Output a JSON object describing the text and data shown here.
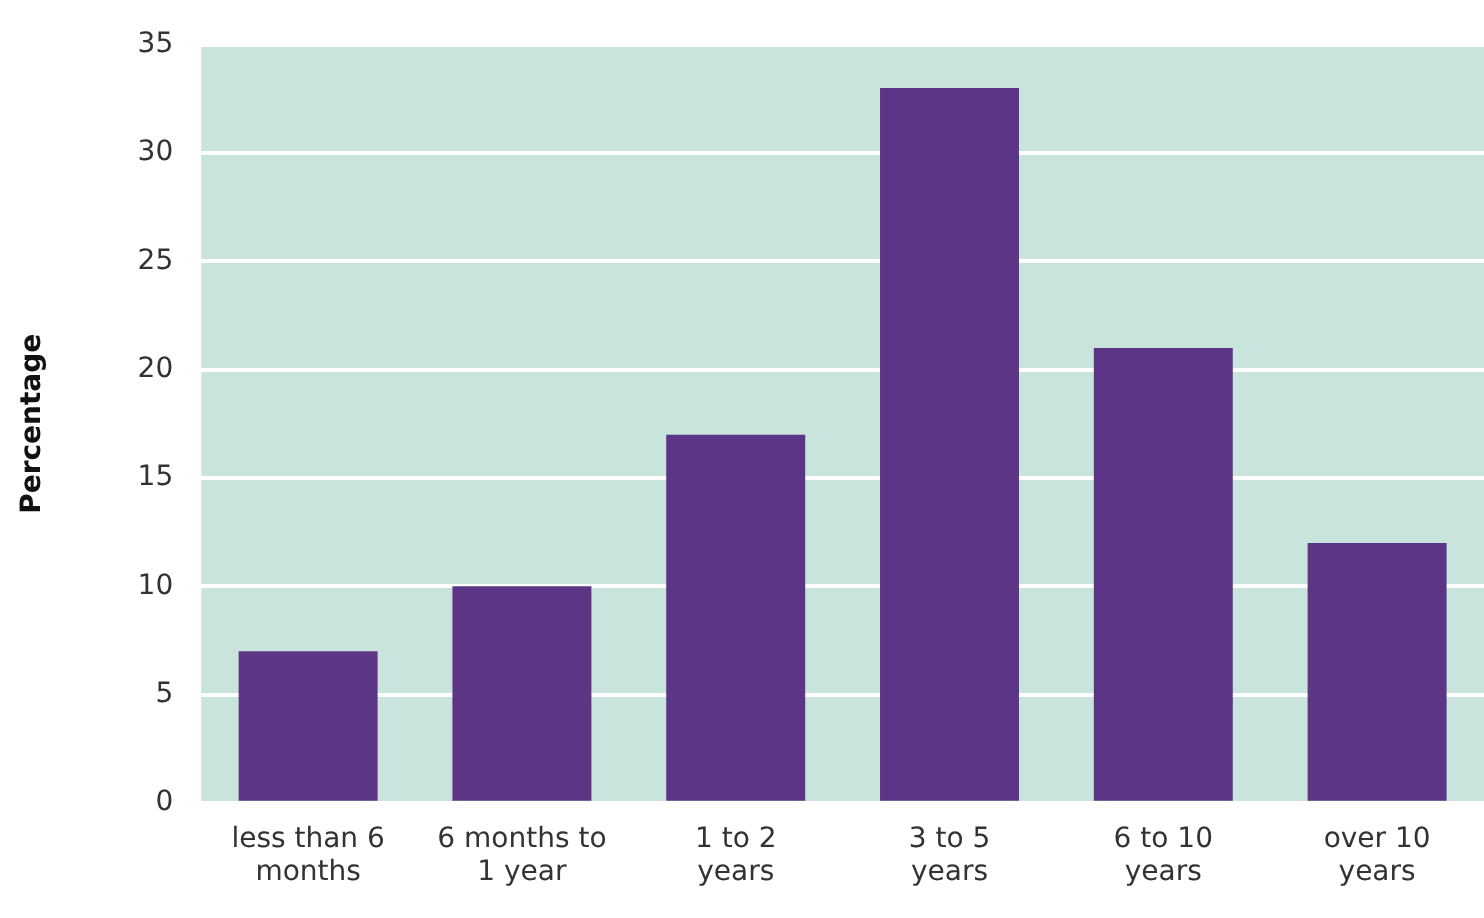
{
  "chart_data": {
    "type": "bar",
    "ylabel": "Percentage",
    "categories": [
      "less than 6 months",
      "6 months to 1 year",
      "1 to 2 years",
      "3 to 5 years",
      "6 to 10 years",
      "over 10 years"
    ],
    "values": [
      7,
      10,
      17,
      33,
      21,
      12
    ],
    "color": "#5c3586",
    "ylim": [
      0,
      35
    ],
    "yticks": [
      0,
      5,
      10,
      15,
      20,
      25,
      30,
      35
    ],
    "grid": "y",
    "legend": false
  }
}
